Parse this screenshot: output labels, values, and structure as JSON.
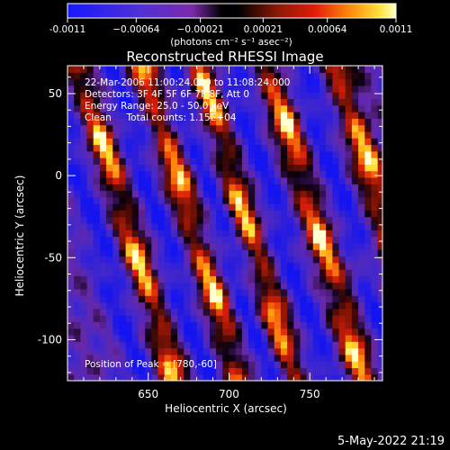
{
  "chart_data": {
    "type": "heatmap",
    "title": "Reconstructed RHESSI Image",
    "xlabel": "Heliocentric X (arcsec)",
    "ylabel": "Heliocentric Y (arcsec)",
    "xlim": [
      600,
      795
    ],
    "ylim": [
      -125,
      67
    ],
    "xticks": [
      650,
      700,
      750
    ],
    "yticks": [
      50,
      0,
      -50,
      -100
    ],
    "colorbar": {
      "min": -0.0011,
      "max": 0.0011,
      "tick_values": [
        -0.0011,
        -0.00064,
        -0.00021,
        0.00021,
        0.00064,
        0.0011
      ],
      "tick_labels": [
        "-0.0011",
        "−0.00064",
        "−0.00021",
        "0.00021",
        "0.00064",
        "0.0011"
      ],
      "units_label": "(photons cm⁻² s⁻¹ asec⁻²)"
    },
    "annotations": [
      "22-Mar-2006 11:00:24.000 to 11:08:24.000",
      "Detectors: 3F 4F 5F 6F 7F 8F, Att 0",
      "Energy Range: 25.0 - 50.0 keV",
      "Clean     Total counts: 1.15E+04"
    ],
    "peak_label": "Position of Peak = [780,-60]",
    "peak": [
      780,
      -60
    ],
    "stripe_pattern": {
      "slope": -3.2,
      "bright_lines_x_at_y0": [
        628,
        668,
        702,
        745,
        788
      ],
      "dark_lines_x_at_y0": [
        608,
        648,
        686,
        722,
        765
      ]
    }
  },
  "footer_timestamp": "5-May-2022 21:19"
}
